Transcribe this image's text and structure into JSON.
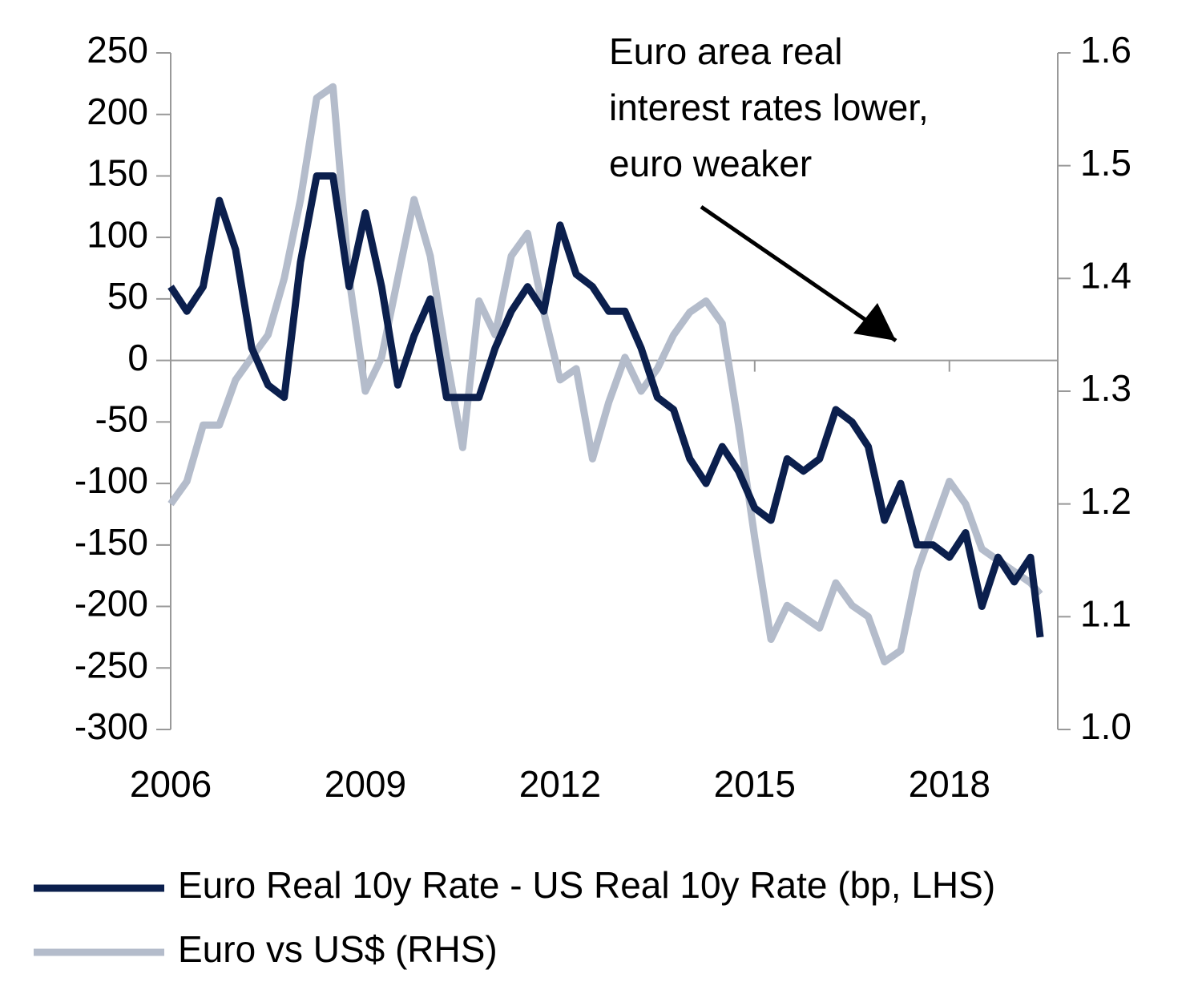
{
  "chart_data": {
    "type": "line",
    "annotation": [
      "Euro area real",
      "interest rates lower,",
      "euro weaker"
    ],
    "x": [
      2006.0,
      2006.25,
      2006.5,
      2006.75,
      2007.0,
      2007.25,
      2007.5,
      2007.75,
      2008.0,
      2008.25,
      2008.5,
      2008.75,
      2009.0,
      2009.25,
      2009.5,
      2009.75,
      2010.0,
      2010.25,
      2010.5,
      2010.75,
      2011.0,
      2011.25,
      2011.5,
      2011.75,
      2012.0,
      2012.25,
      2012.5,
      2012.75,
      2013.0,
      2013.25,
      2013.5,
      2013.75,
      2014.0,
      2014.25,
      2014.5,
      2014.75,
      2015.0,
      2015.25,
      2015.5,
      2015.75,
      2016.0,
      2016.25,
      2016.5,
      2016.75,
      2017.0,
      2017.25,
      2017.5,
      2017.75,
      2018.0,
      2018.25,
      2018.5,
      2018.75,
      2019.0,
      2019.25,
      2019.4
    ],
    "xlim": [
      2006,
      2019.67
    ],
    "xticks": [
      2006,
      2009,
      2012,
      2015,
      2018
    ],
    "ylim": [
      -300,
      250
    ],
    "yticks": [
      -300,
      -250,
      -200,
      -150,
      -100,
      -50,
      0,
      50,
      100,
      150,
      200,
      250
    ],
    "y2lim": [
      1.0,
      1.6
    ],
    "y2ticks": [
      {
        "value": 1.0,
        "label": "1.0"
      },
      1.1,
      1.2,
      1.3,
      1.4,
      1.5,
      1.6
    ],
    "legend": "bottom",
    "series": [
      {
        "name": "Euro Real 10y Rate - US Real 10y Rate (bp, LHS)",
        "color": "#0b1f4d",
        "values": [
          60,
          40,
          60,
          130,
          90,
          10,
          -20,
          -30,
          80,
          150,
          150,
          60,
          120,
          60,
          -20,
          20,
          50,
          -30,
          -30,
          -30,
          10,
          40,
          60,
          40,
          110,
          70,
          60,
          40,
          40,
          10,
          -30,
          -40,
          -80,
          -100,
          -70,
          -90,
          -120,
          -130,
          -80,
          -90,
          -80,
          -40,
          -50,
          -70,
          -130,
          -100,
          -150,
          -150,
          -160,
          -140,
          -200,
          -160,
          -180,
          -160,
          -225
        ]
      },
      {
        "name": "Euro vs US$ (RHS)",
        "color": "#b4bccb",
        "axis": "y2",
        "values": [
          1.2,
          1.22,
          1.27,
          1.27,
          1.31,
          1.33,
          1.35,
          1.4,
          1.47,
          1.56,
          1.57,
          1.4,
          1.3,
          1.33,
          1.4,
          1.47,
          1.42,
          1.33,
          1.25,
          1.38,
          1.35,
          1.42,
          1.44,
          1.37,
          1.31,
          1.32,
          1.24,
          1.29,
          1.33,
          1.3,
          1.32,
          1.35,
          1.37,
          1.38,
          1.36,
          1.27,
          1.17,
          1.08,
          1.11,
          1.1,
          1.09,
          1.13,
          1.11,
          1.1,
          1.06,
          1.07,
          1.14,
          1.18,
          1.22,
          1.2,
          1.16,
          1.15,
          1.14,
          1.13,
          1.12
        ]
      }
    ]
  }
}
